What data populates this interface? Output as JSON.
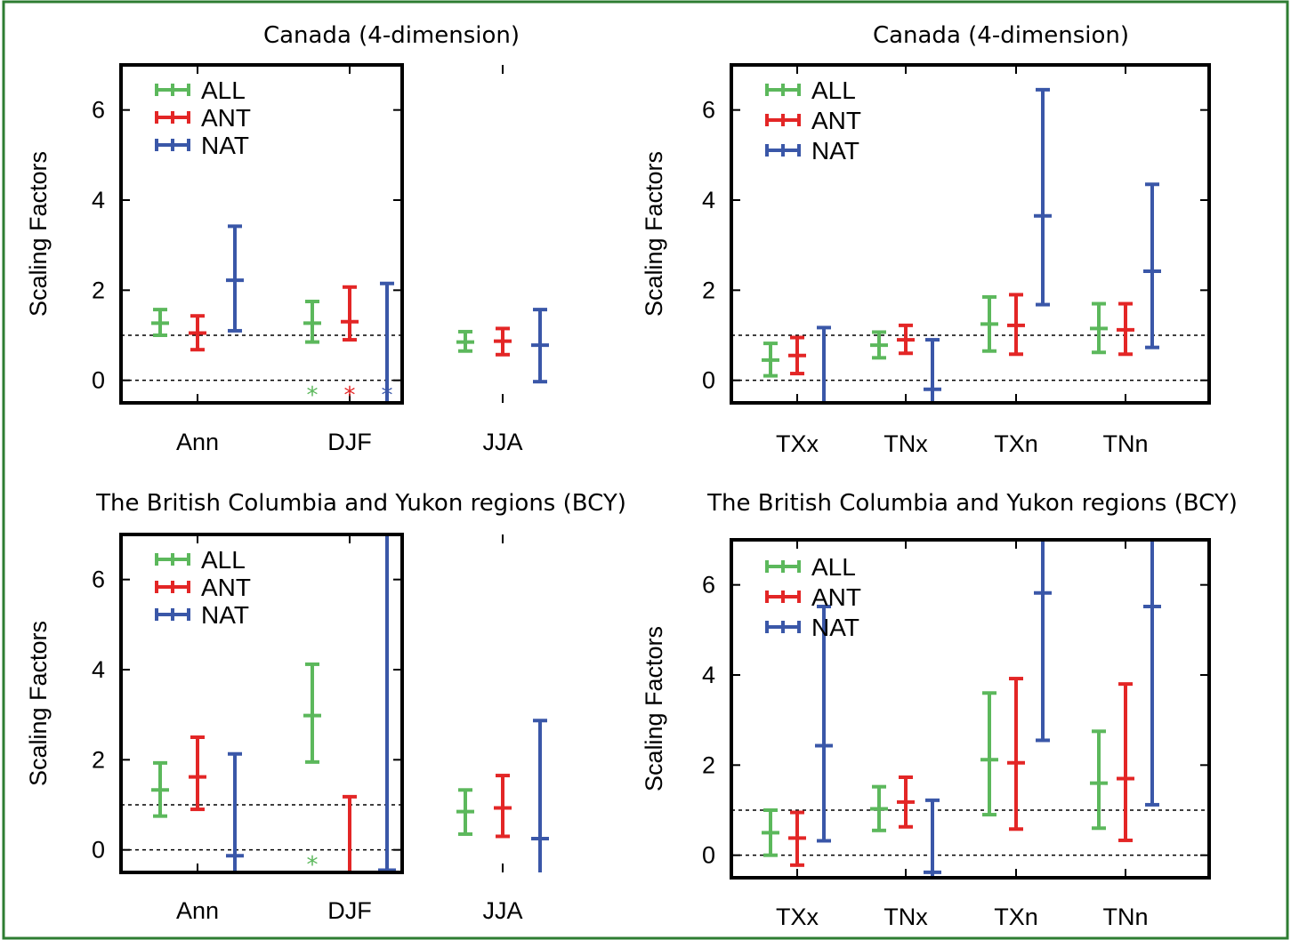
{
  "colors": {
    "ALL": "#5cb85c",
    "ANT": "#e32626",
    "NAT": "#3a57a8"
  },
  "chart_data": [
    {
      "type": "errorbar",
      "title": "Canada (4-dimension)",
      "ylabel": "Scaling Factors",
      "ylim": [
        -0.5,
        7.0
      ],
      "yticks": [
        0,
        2,
        4,
        6
      ],
      "reference_lines": [
        0,
        1
      ],
      "legend": "top-left",
      "categories": [
        "Ann",
        "DJF",
        "JJA"
      ],
      "series": [
        {
          "name": "ALL",
          "values": [
            {
              "best": 1.27,
              "low": 1.0,
              "high": 1.57
            },
            {
              "best": 1.27,
              "low": 0.85,
              "high": 1.75
            },
            {
              "best": 0.85,
              "low": 0.65,
              "high": 1.08
            }
          ]
        },
        {
          "name": "ANT",
          "values": [
            {
              "best": 1.05,
              "low": 0.68,
              "high": 1.43
            },
            {
              "best": 1.3,
              "low": 0.9,
              "high": 2.07
            },
            {
              "best": 0.87,
              "low": 0.57,
              "high": 1.15
            }
          ]
        },
        {
          "name": "NAT",
          "values": [
            {
              "best": 2.22,
              "low": 1.1,
              "high": 3.42
            },
            {
              "best": null,
              "low": null,
              "high": 2.15
            },
            {
              "best": 0.78,
              "low": -0.03,
              "high": 1.57
            }
          ]
        }
      ],
      "markers": [
        {
          "series": "ALL",
          "category": "DJF",
          "y": -0.3,
          "symbol": "*"
        },
        {
          "series": "ANT",
          "category": "DJF",
          "y": -0.3,
          "symbol": "*"
        },
        {
          "series": "NAT",
          "category": "DJF",
          "y": -0.3,
          "symbol": "*"
        }
      ]
    },
    {
      "type": "errorbar",
      "title": "Canada (4-dimension)",
      "ylabel": "Scaling Factors",
      "ylim": [
        -0.5,
        7.0
      ],
      "yticks": [
        0,
        2,
        4,
        6
      ],
      "reference_lines": [
        0,
        1
      ],
      "legend": "top-left",
      "categories": [
        "TXx",
        "TNx",
        "TXn",
        "TNn"
      ],
      "series": [
        {
          "name": "ALL",
          "values": [
            {
              "best": 0.45,
              "low": 0.1,
              "high": 0.82
            },
            {
              "best": 0.78,
              "low": 0.5,
              "high": 1.07
            },
            {
              "best": 1.25,
              "low": 0.65,
              "high": 1.85
            },
            {
              "best": 1.15,
              "low": 0.62,
              "high": 1.7
            }
          ]
        },
        {
          "name": "ANT",
          "values": [
            {
              "best": 0.55,
              "low": 0.15,
              "high": 0.95
            },
            {
              "best": 0.9,
              "low": 0.6,
              "high": 1.22
            },
            {
              "best": 1.22,
              "low": 0.58,
              "high": 1.9
            },
            {
              "best": 1.12,
              "low": 0.58,
              "high": 1.7
            }
          ]
        },
        {
          "name": "NAT",
          "values": [
            {
              "best": -0.5,
              "low": -0.5,
              "high": 1.17
            },
            {
              "best": -0.2,
              "low": -0.5,
              "high": 0.9
            },
            {
              "best": 3.65,
              "low": 1.68,
              "high": 6.45
            },
            {
              "best": 2.42,
              "low": 0.73,
              "high": 4.35
            }
          ]
        }
      ],
      "markers": []
    },
    {
      "type": "errorbar",
      "title": "The British Columbia and Yukon regions (BCY)",
      "ylabel": "Scaling Factors",
      "ylim": [
        -0.5,
        7.0
      ],
      "yticks": [
        0,
        2,
        4,
        6
      ],
      "reference_lines": [
        0,
        1
      ],
      "legend": "top-left",
      "categories": [
        "Ann",
        "DJF",
        "JJA"
      ],
      "series": [
        {
          "name": "ALL",
          "values": [
            {
              "best": 1.33,
              "low": 0.75,
              "high": 1.93
            },
            {
              "best": 2.98,
              "low": 1.95,
              "high": 4.12
            },
            {
              "best": 0.85,
              "low": 0.35,
              "high": 1.33
            }
          ]
        },
        {
          "name": "ANT",
          "values": [
            {
              "best": 1.62,
              "low": 0.9,
              "high": 2.5
            },
            {
              "best": null,
              "low": -0.6,
              "high": 1.18
            },
            {
              "best": 0.93,
              "low": 0.3,
              "high": 1.65
            }
          ]
        },
        {
          "name": "NAT",
          "values": [
            {
              "best": -0.13,
              "low": -0.5,
              "high": 2.13
            },
            {
              "best": -0.45,
              "low": -0.5,
              "high": 7.0
            },
            {
              "best": 0.25,
              "low": -0.5,
              "high": 2.87
            }
          ]
        }
      ],
      "markers": [
        {
          "series": "ALL",
          "category": "DJF",
          "y": -0.3,
          "symbol": "*"
        }
      ]
    },
    {
      "type": "errorbar",
      "title": "The British Columbia and Yukon regions (BCY)",
      "ylabel": "Scaling Factors",
      "ylim": [
        -0.5,
        7.0
      ],
      "yticks": [
        0,
        2,
        4,
        6
      ],
      "reference_lines": [
        0,
        1
      ],
      "legend": "top-left",
      "categories": [
        "TXx",
        "TNx",
        "TXn",
        "TNn"
      ],
      "series": [
        {
          "name": "ALL",
          "values": [
            {
              "best": 0.5,
              "low": 0.0,
              "high": 1.0
            },
            {
              "best": 1.03,
              "low": 0.55,
              "high": 1.52
            },
            {
              "best": 2.12,
              "low": 0.9,
              "high": 3.6
            },
            {
              "best": 1.6,
              "low": 0.6,
              "high": 2.75
            }
          ]
        },
        {
          "name": "ANT",
          "values": [
            {
              "best": 0.38,
              "low": -0.22,
              "high": 0.95
            },
            {
              "best": 1.18,
              "low": 0.63,
              "high": 1.73
            },
            {
              "best": 2.05,
              "low": 0.58,
              "high": 3.92
            },
            {
              "best": 1.7,
              "low": 0.33,
              "high": 3.8
            }
          ]
        },
        {
          "name": "NAT",
          "values": [
            {
              "best": 2.43,
              "low": 0.32,
              "high": 5.52
            },
            {
              "best": -0.38,
              "low": -0.5,
              "high": 1.22
            },
            {
              "best": 5.82,
              "low": 2.55,
              "high": 7.0
            },
            {
              "best": 5.52,
              "low": 1.12,
              "high": 7.0
            }
          ]
        }
      ],
      "markers": []
    }
  ]
}
